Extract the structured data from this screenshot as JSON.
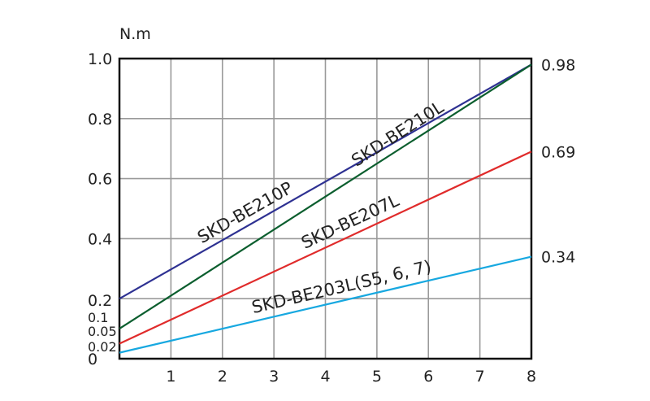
{
  "chart_data": {
    "type": "line",
    "ylabel": "N.m",
    "xlim": [
      0,
      8
    ],
    "ylim": [
      0,
      1.0
    ],
    "x_ticks": [
      "1",
      "2",
      "3",
      "4",
      "5",
      "6",
      "7",
      "8"
    ],
    "y_ticks": [
      {
        "value": 0,
        "label": "0"
      },
      {
        "value": 0.02,
        "label": "0.02"
      },
      {
        "value": 0.05,
        "label": "0.05"
      },
      {
        "value": 0.1,
        "label": "0.1"
      },
      {
        "value": 0.2,
        "label": "0.2"
      },
      {
        "value": 0.4,
        "label": "0.4"
      },
      {
        "value": 0.6,
        "label": "0.6"
      },
      {
        "value": 0.8,
        "label": "0.8"
      },
      {
        "value": 1.0,
        "label": "1.0"
      }
    ],
    "right_ticks": [
      {
        "value": 0.98,
        "label": "0.98"
      },
      {
        "value": 0.69,
        "label": "0.69"
      },
      {
        "value": 0.34,
        "label": "0.34"
      }
    ],
    "grid": true,
    "series": [
      {
        "name": "SKD-BE210P",
        "color": "#2e3192",
        "x": [
          0,
          8
        ],
        "values": [
          0.2,
          0.98
        ]
      },
      {
        "name": "SKD-BE210L",
        "color": "#0b5e2e",
        "x": [
          0,
          8
        ],
        "values": [
          0.1,
          0.98
        ]
      },
      {
        "name": "SKD-BE207L",
        "color": "#e02b2b",
        "x": [
          0,
          8
        ],
        "values": [
          0.05,
          0.69
        ]
      },
      {
        "name": "SKD-BE203L(S5, 6, 7)",
        "color": "#17a8e0",
        "x": [
          0,
          8
        ],
        "values": [
          0.02,
          0.34
        ]
      }
    ]
  }
}
